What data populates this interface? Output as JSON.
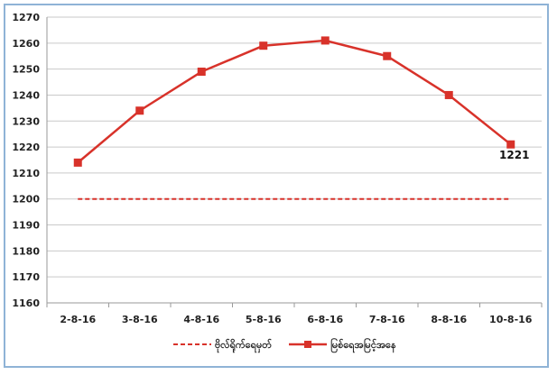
{
  "chart_data": {
    "type": "line",
    "title": "",
    "xlabel": "",
    "ylabel": "",
    "categories": [
      "2-8-16",
      "3-8-16",
      "4-8-16",
      "5-8-16",
      "6-8-16",
      "7-8-16",
      "8-8-16",
      "10-8-16"
    ],
    "ylim": [
      1160,
      1270
    ],
    "yticks": [
      1160,
      1170,
      1180,
      1190,
      1200,
      1210,
      1220,
      1230,
      1240,
      1250,
      1260,
      1270
    ],
    "grid": true,
    "legend_position": "bottom",
    "series": [
      {
        "name": "ဗိုလ်ရိုက်ရေမှတ်",
        "style": "dashed",
        "marker": "none",
        "color": "#d8322a",
        "values": [
          1200,
          1200,
          1200,
          1200,
          1200,
          1200,
          1200,
          1200
        ]
      },
      {
        "name": "မြစ်ရေအမြင့်အနေ",
        "style": "solid",
        "marker": "square",
        "color": "#d8322a",
        "values": [
          1214,
          1234,
          1249,
          1259,
          1261,
          1255,
          1240,
          1221
        ]
      }
    ],
    "annotations": [
      {
        "series": 1,
        "index": 7,
        "text": "1221"
      }
    ]
  }
}
